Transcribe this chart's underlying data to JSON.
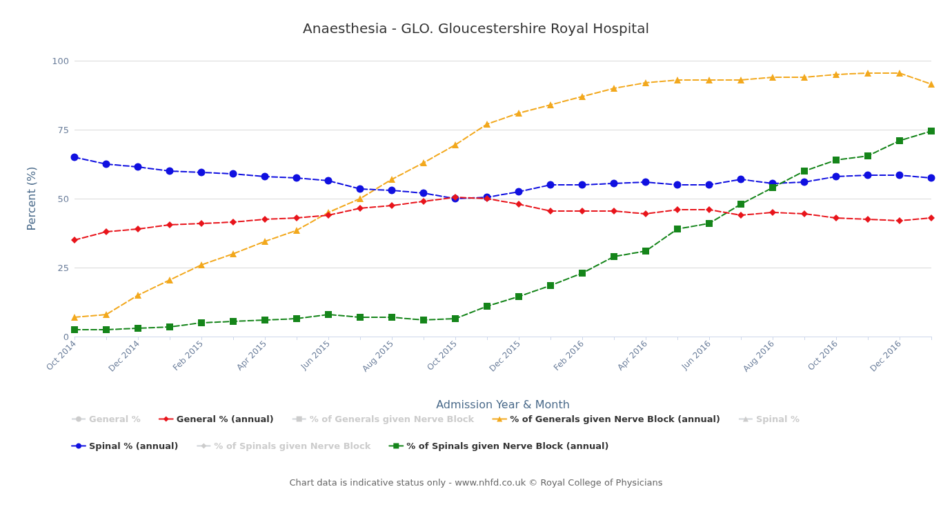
{
  "chart_data": {
    "type": "line",
    "title": "Anaesthesia - GLO. Gloucestershire Royal Hospital",
    "xlabel": "Admission Year & Month",
    "ylabel": "Percent (%)",
    "categories": [
      "Oct 2014",
      null,
      "Dec 2014",
      null,
      "Feb 2015",
      null,
      "Apr 2015",
      null,
      "Jun 2015",
      null,
      "Aug 2015",
      null,
      "Oct 2015",
      null,
      "Dec 2015",
      null,
      "Feb 2016",
      null,
      "Apr 2016",
      null,
      "Jun 2016",
      null,
      "Aug 2016",
      null,
      "Oct 2016",
      null,
      "Dec 2016",
      null
    ],
    "series": [
      {
        "name": "General %",
        "color": "#cccccc",
        "marker": "circle",
        "values": [
          null,
          null,
          null,
          null,
          null,
          null,
          null,
          null,
          null,
          null,
          null,
          null,
          null,
          null,
          null,
          null,
          null,
          null,
          null,
          null,
          null,
          null,
          null,
          null,
          null,
          null,
          null,
          null
        ]
      },
      {
        "name": "General % (annual)",
        "color": "#e8141b",
        "marker": "diamond",
        "values": [
          35,
          38,
          39,
          40.5,
          41,
          41.5,
          42.5,
          43,
          44,
          46.5,
          47.5,
          49,
          50.5,
          50,
          48,
          45.5,
          45.5,
          45.5,
          44.5,
          46,
          46,
          44,
          45,
          44.5,
          43,
          42.5,
          42,
          43
        ]
      },
      {
        "name": "% of Generals given Nerve Block",
        "color": "#cccccc",
        "marker": "square",
        "values": [
          null,
          null,
          null,
          null,
          null,
          null,
          null,
          null,
          null,
          null,
          null,
          null,
          null,
          null,
          null,
          null,
          null,
          null,
          null,
          null,
          null,
          null,
          null,
          null,
          null,
          null,
          null,
          null
        ]
      },
      {
        "name": "% of Generals given Nerve Block (annual)",
        "color": "#f2a81d",
        "marker": "triangle",
        "values": [
          7,
          8,
          15,
          20.5,
          26,
          30,
          34.5,
          38.5,
          45,
          50,
          57,
          63,
          69.5,
          77,
          81,
          84,
          87,
          90,
          92,
          93,
          93,
          93,
          94,
          94,
          95,
          95.5,
          95.5,
          91.5
        ]
      },
      {
        "name": "Spinal %",
        "color": "#cccccc",
        "marker": "triangle",
        "values": [
          null,
          null,
          null,
          null,
          null,
          null,
          null,
          null,
          null,
          null,
          null,
          null,
          null,
          null,
          null,
          null,
          null,
          null,
          null,
          null,
          null,
          null,
          null,
          null,
          null,
          null,
          null,
          null
        ]
      },
      {
        "name": "Spinal % (annual)",
        "color": "#1010e0",
        "marker": "circle",
        "values": [
          65,
          62.5,
          61.5,
          60,
          59.5,
          59,
          58,
          57.5,
          56.5,
          53.5,
          53,
          52,
          50,
          50.5,
          52.5,
          55,
          55,
          55.5,
          56,
          55,
          55,
          57,
          55.5,
          56,
          58,
          58.5,
          58.5,
          57.5
        ]
      },
      {
        "name": "% of Spinals given Nerve Block",
        "color": "#cccccc",
        "marker": "diamond",
        "values": [
          null,
          null,
          null,
          null,
          null,
          null,
          null,
          null,
          null,
          null,
          null,
          null,
          null,
          null,
          null,
          null,
          null,
          null,
          null,
          null,
          null,
          null,
          null,
          null,
          null,
          null,
          null,
          null
        ]
      },
      {
        "name": "% of Spinals given Nerve Block (annual)",
        "color": "#15851a",
        "marker": "square",
        "values": [
          2.5,
          2.5,
          3,
          3.5,
          5,
          5.5,
          6,
          6.5,
          8,
          7,
          7,
          6,
          6.5,
          11,
          14.5,
          18.5,
          23,
          29,
          31,
          39,
          41,
          48,
          54,
          60,
          64,
          65.5,
          71,
          74.5
        ]
      }
    ],
    "ylim": [
      0,
      100
    ],
    "yticks": [
      0,
      25,
      50,
      75,
      100
    ],
    "grid": "y",
    "legend": "bottom",
    "line_style": "dashed",
    "annotations": [
      "Chart data is indicative status only - www.nhfd.co.uk © Royal College of Physicians"
    ]
  }
}
